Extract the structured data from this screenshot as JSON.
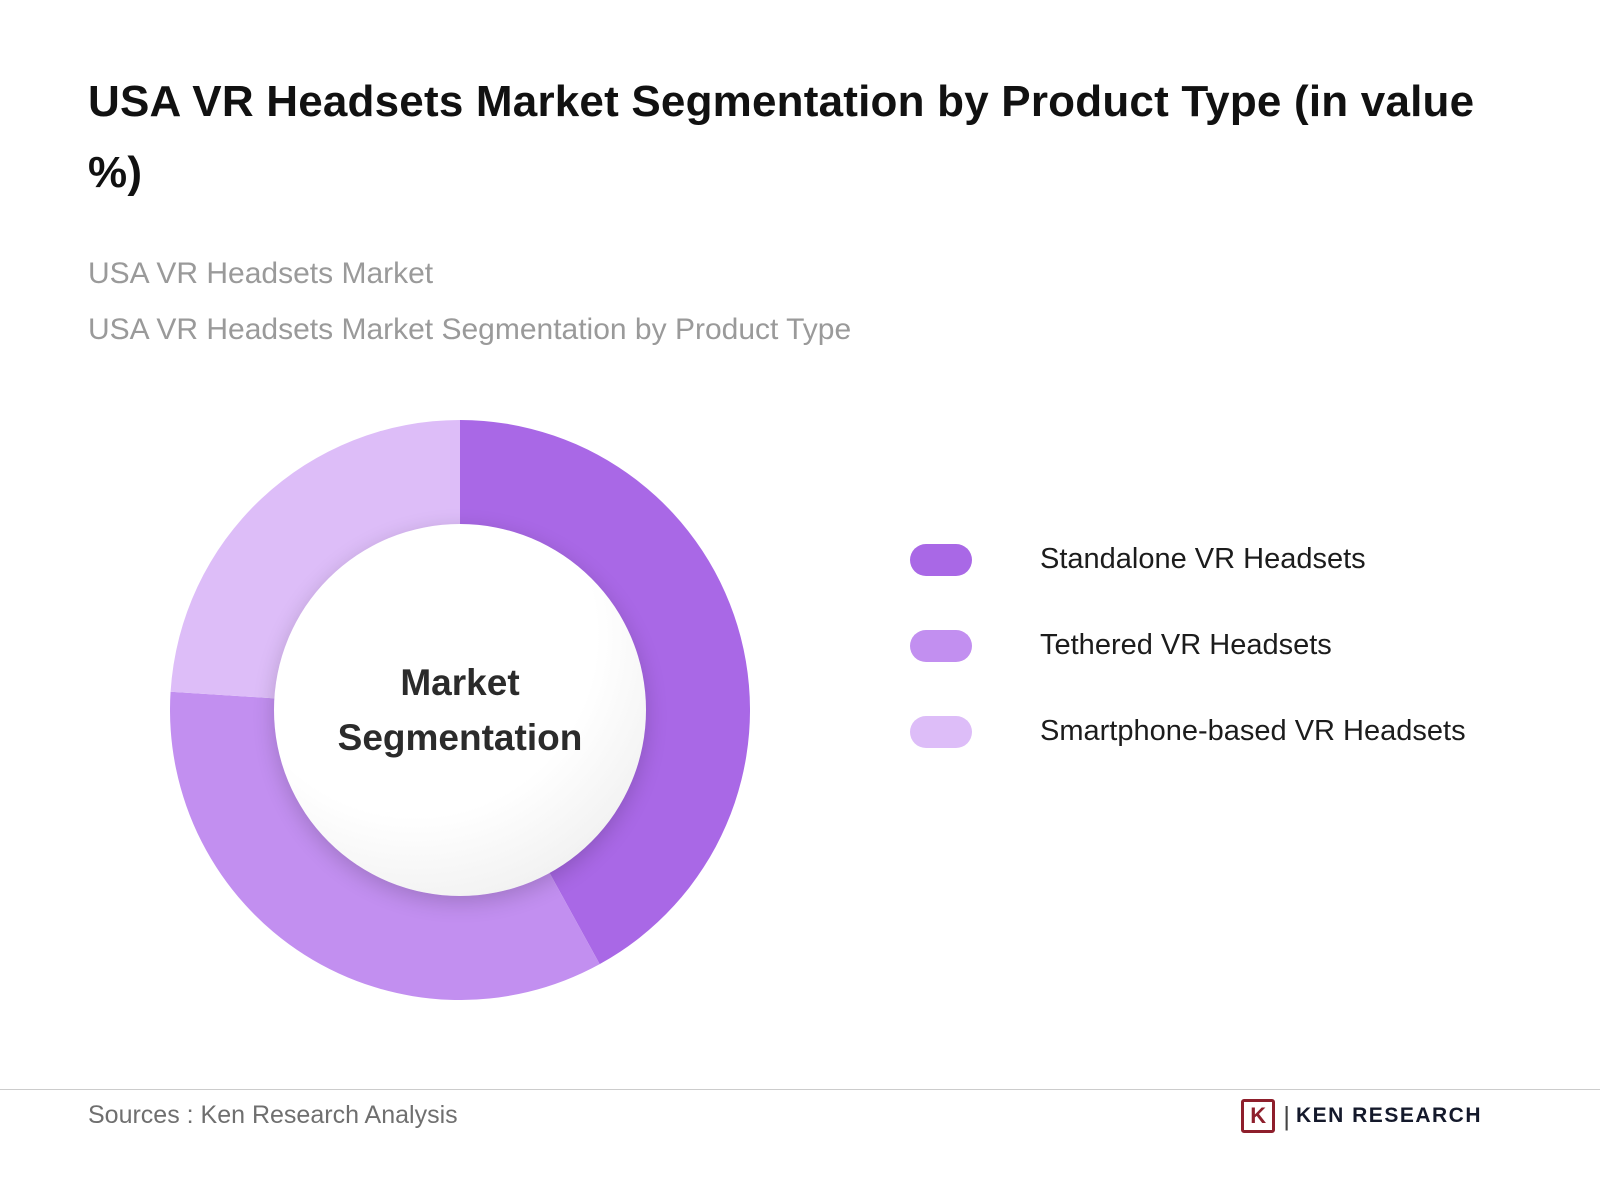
{
  "page": {
    "title": "USA VR Headsets Market Segmentation by Product Type (in value %)",
    "subtitle_line1": "USA VR Headsets Market",
    "subtitle_line2": "USA VR Headsets Market Segmentation by Product Type",
    "footer_source": "Sources : Ken Research Analysis",
    "brand": {
      "logo_letter": "K",
      "name": "KEN RESEARCH",
      "logo_color": "#8e1f2c"
    }
  },
  "chart_data": {
    "type": "pie",
    "variant": "donut",
    "title": "USA VR Headsets Market Segmentation by Product Type (in value %)",
    "center_label": "Market Segmentation",
    "unit": "value %",
    "start_angle_deg": 0,
    "legend_position": "right",
    "segments": [
      {
        "label": "Standalone VR Headsets",
        "value": 42,
        "color": "#a968e6"
      },
      {
        "label": "Tethered VR Headsets",
        "value": 34,
        "color": "#c28ff0"
      },
      {
        "label": "Smartphone-based VR Headsets",
        "value": 24,
        "color": "#ddbdf8"
      }
    ]
  }
}
